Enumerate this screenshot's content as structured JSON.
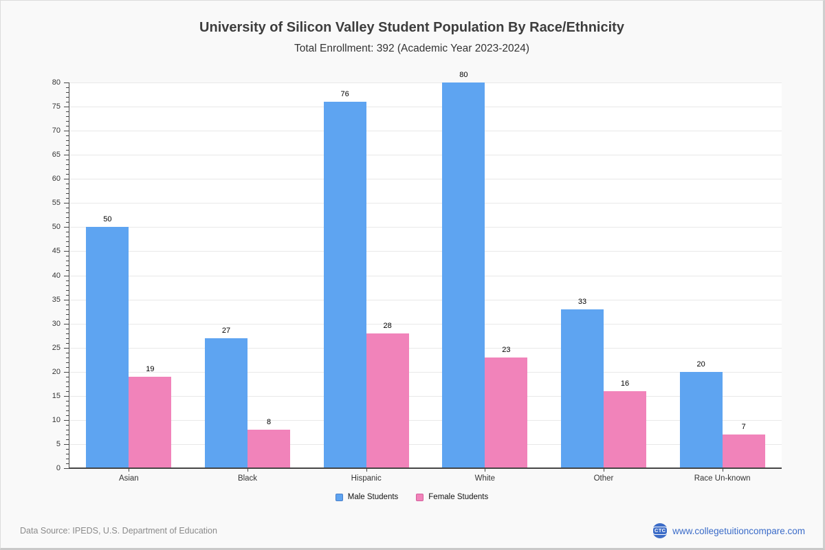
{
  "header": {
    "title": "University of Silicon Valley Student Population By Race/Ethnicity",
    "subtitle": "Total Enrollment: 392 (Academic Year 2023-2024)"
  },
  "chart_data": {
    "type": "bar",
    "title": "University of Silicon Valley Student Population By Race/Ethnicity",
    "subtitle": "Total Enrollment: 392 (Academic Year 2023-2024)",
    "categories": [
      "Asian",
      "Black",
      "Hispanic",
      "White",
      "Other",
      "Race Un-known"
    ],
    "series": [
      {
        "name": "Male Students",
        "color": "#5ea4f1",
        "marker_border": "#4a7fc8",
        "values": [
          50,
          27,
          76,
          80,
          33,
          20
        ]
      },
      {
        "name": "Female Students",
        "color": "#f183ba",
        "marker_border": "#d45f9b",
        "values": [
          19,
          8,
          28,
          23,
          16,
          7
        ]
      }
    ],
    "xlabel": "",
    "ylabel": "",
    "ylim": [
      0,
      80
    ],
    "yticks": [
      0,
      5,
      10,
      15,
      20,
      25,
      30,
      35,
      40,
      45,
      50,
      55,
      60,
      65,
      70,
      75,
      80
    ],
    "minor_tick_step": 1,
    "grid": true,
    "value_labels": true,
    "legend_position": "bottom"
  },
  "colors": {
    "page_background": "#f9f9f9",
    "plot_background": "#ffffff",
    "gridline": "#e8e8e8",
    "axis": "#444444",
    "male_bar": "#5ea4f1",
    "female_bar": "#f183ba",
    "brand_blue": "#3a6bc8",
    "logo_circle": "#3c6cc7",
    "source_gray": "#8a8a8a"
  },
  "footer": {
    "source": "Data Source: IPEDS, U.S. Department of Education",
    "logo_text": "CTC",
    "brand": "www.collegetuitioncompare.com"
  }
}
